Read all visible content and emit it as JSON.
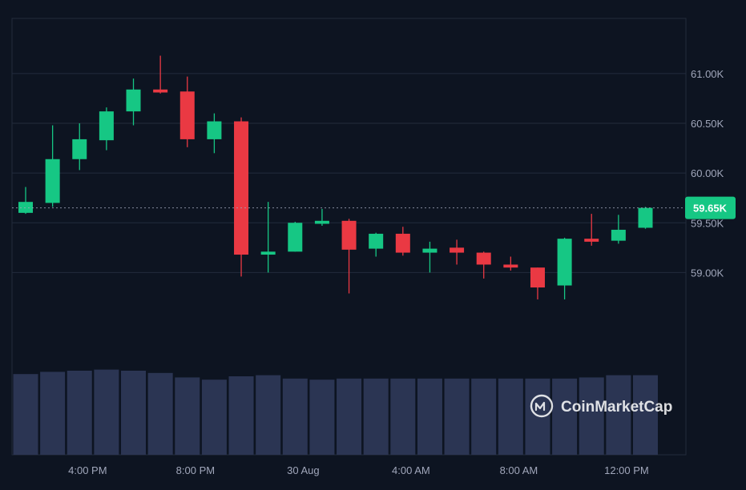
{
  "chart_data": {
    "type": "candlestick",
    "title": "",
    "y_axis": {
      "ticks": [
        {
          "value": 59000,
          "label": "59.00K"
        },
        {
          "value": 59500,
          "label": "59.50K"
        },
        {
          "value": 60000,
          "label": "60.00K"
        },
        {
          "value": 60500,
          "label": "60.50K"
        },
        {
          "value": 61000,
          "label": "61.00K"
        }
      ],
      "range": [
        58150,
        61450
      ]
    },
    "x_axis": {
      "ticks": [
        {
          "candle_index": 2.3,
          "label": "4:00 PM"
        },
        {
          "candle_index": 6.3,
          "label": "8:00 PM"
        },
        {
          "candle_index": 10.3,
          "label": "30 Aug"
        },
        {
          "candle_index": 14.3,
          "label": "4:00 AM"
        },
        {
          "candle_index": 18.3,
          "label": "8:00 AM"
        },
        {
          "candle_index": 22.3,
          "label": "12:00 PM"
        }
      ]
    },
    "current_price": {
      "value": 59650,
      "label": "59.65K"
    },
    "colors": {
      "up": "#16c784",
      "down": "#ea3943",
      "volume": "#2b3553",
      "grid": "#222b3c",
      "price_tag": "#16c784"
    },
    "candles": [
      {
        "open": 59600,
        "high": 59860,
        "low": 59590,
        "close": 59710
      },
      {
        "open": 59700,
        "high": 60480,
        "low": 59660,
        "close": 60140
      },
      {
        "open": 60140,
        "high": 60500,
        "low": 60030,
        "close": 60340
      },
      {
        "open": 60330,
        "high": 60660,
        "low": 60230,
        "close": 60620
      },
      {
        "open": 60620,
        "high": 60950,
        "low": 60480,
        "close": 60840
      },
      {
        "open": 60840,
        "high": 61180,
        "low": 60800,
        "close": 60810
      },
      {
        "open": 60820,
        "high": 60970,
        "low": 60260,
        "close": 60340
      },
      {
        "open": 60340,
        "high": 60600,
        "low": 60200,
        "close": 60520
      },
      {
        "open": 60520,
        "high": 60560,
        "low": 58960,
        "close": 59180
      },
      {
        "open": 59180,
        "high": 59710,
        "low": 59000,
        "close": 59210
      },
      {
        "open": 59210,
        "high": 59510,
        "low": 59210,
        "close": 59500
      },
      {
        "open": 59490,
        "high": 59640,
        "low": 59470,
        "close": 59520
      },
      {
        "open": 59520,
        "high": 59540,
        "low": 58790,
        "close": 59230
      },
      {
        "open": 59240,
        "high": 59400,
        "low": 59160,
        "close": 59390
      },
      {
        "open": 59390,
        "high": 59460,
        "low": 59170,
        "close": 59200
      },
      {
        "open": 59200,
        "high": 59310,
        "low": 59000,
        "close": 59240
      },
      {
        "open": 59250,
        "high": 59330,
        "low": 59080,
        "close": 59200
      },
      {
        "open": 59200,
        "high": 59210,
        "low": 58940,
        "close": 59080
      },
      {
        "open": 59080,
        "high": 59160,
        "low": 59020,
        "close": 59050
      },
      {
        "open": 59050,
        "high": 59050,
        "low": 58730,
        "close": 58850
      },
      {
        "open": 58870,
        "high": 59350,
        "low": 58730,
        "close": 59340
      },
      {
        "open": 59340,
        "high": 59590,
        "low": 59270,
        "close": 59310
      },
      {
        "open": 59320,
        "high": 59580,
        "low": 59290,
        "close": 59430
      },
      {
        "open": 59450,
        "high": 59660,
        "low": 59440,
        "close": 59650
      }
    ],
    "volume": [
      0.72,
      0.74,
      0.75,
      0.76,
      0.75,
      0.73,
      0.69,
      0.67,
      0.7,
      0.71,
      0.68,
      0.67,
      0.68,
      0.68,
      0.68,
      0.68,
      0.68,
      0.68,
      0.68,
      0.68,
      0.68,
      0.69,
      0.71,
      0.71
    ],
    "watermark": "CoinMarketCap"
  }
}
